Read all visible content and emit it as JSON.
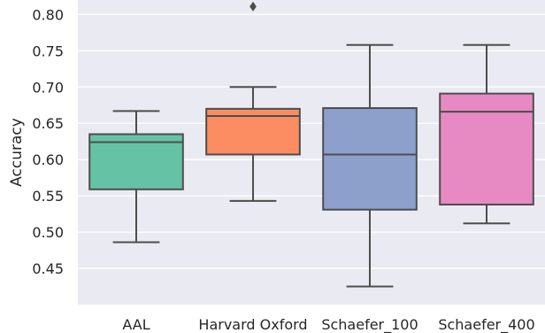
{
  "chart_data": {
    "type": "box",
    "title": "",
    "xlabel": "",
    "ylabel": "Accuracy",
    "ylim": [
      0.4,
      0.82
    ],
    "yticks": [
      "0.45",
      "0.50",
      "0.55",
      "0.60",
      "0.65",
      "0.70",
      "0.75",
      "0.80"
    ],
    "grid": true,
    "background_color": "#EAEAF2",
    "grid_color": "#FFFFFF",
    "categories": [
      "AAL",
      "Harvard Oxford",
      "Schaefer_100",
      "Schaefer_400"
    ],
    "boxes": [
      {
        "label": "AAL",
        "whisker_low": 0.486,
        "q1": 0.559,
        "median": 0.624,
        "q3": 0.635,
        "whisker_high": 0.667,
        "outliers": [],
        "color": "#66C2A5"
      },
      {
        "label": "Harvard Oxford",
        "whisker_low": 0.543,
        "q1": 0.607,
        "median": 0.66,
        "q3": 0.67,
        "whisker_high": 0.7,
        "outliers": [
          0.811
        ],
        "color": "#FC8D62"
      },
      {
        "label": "Schaefer_100",
        "whisker_low": 0.425,
        "q1": 0.531,
        "median": 0.607,
        "q3": 0.671,
        "whisker_high": 0.758,
        "outliers": [],
        "color": "#8DA0CB"
      },
      {
        "label": "Schaefer_400",
        "whisker_low": 0.512,
        "q1": 0.538,
        "median": 0.666,
        "q3": 0.691,
        "whisker_high": 0.758,
        "outliers": [],
        "color": "#E78AC3"
      }
    ]
  }
}
